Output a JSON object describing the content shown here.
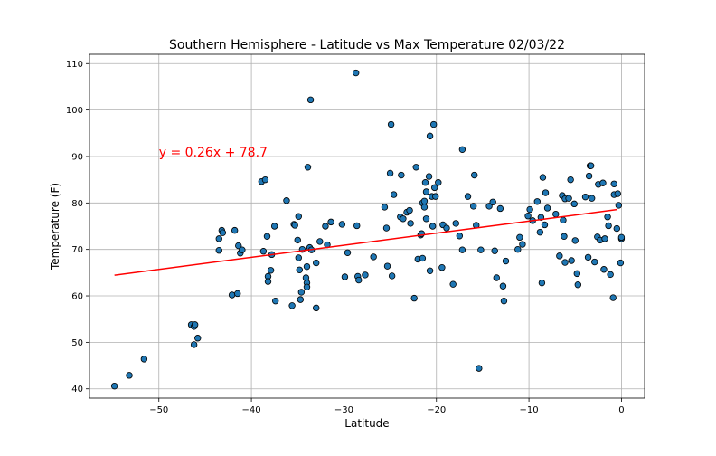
{
  "chart_data": {
    "type": "scatter",
    "title": "Southern Hemisphere - Latitude vs Max Temperature 02/03/22",
    "xlabel": "Latitude",
    "ylabel": "Temperature (F)",
    "xlim": [
      -57.5,
      2.5
    ],
    "ylim": [
      38,
      112
    ],
    "xticks": [
      -50,
      -40,
      -30,
      -20,
      -10,
      0
    ],
    "yticks": [
      40,
      50,
      60,
      70,
      80,
      90,
      100,
      110
    ],
    "grid": true,
    "colors": {
      "points": "#1f77b4",
      "edge": "#000000",
      "line": "#ff0000",
      "grid": "#b0b0b0"
    },
    "regression": {
      "slope": 0.26,
      "intercept": 78.7,
      "x_range": [
        -54.8,
        -0.5
      ],
      "equation": "y = 0.26x + 78.7",
      "label_at": [
        -50,
        90
      ]
    },
    "points": [
      [
        -54.8,
        40.6
      ],
      [
        -53.2,
        42.9
      ],
      [
        -51.6,
        46.4
      ],
      [
        -46.5,
        53.8
      ],
      [
        -46.2,
        53.4
      ],
      [
        -46.1,
        53.8
      ],
      [
        -46.2,
        49.5
      ],
      [
        -45.8,
        50.9
      ],
      [
        -43.5,
        69.8
      ],
      [
        -43.5,
        72.3
      ],
      [
        -43.2,
        74.1
      ],
      [
        -43.1,
        73.6
      ],
      [
        -42.1,
        60.2
      ],
      [
        -41.8,
        74.1
      ],
      [
        -41.5,
        60.5
      ],
      [
        -41.4,
        70.8
      ],
      [
        -41.2,
        69.2
      ],
      [
        -41.0,
        69.9
      ],
      [
        -38.9,
        84.6
      ],
      [
        -38.7,
        69.6
      ],
      [
        -38.5,
        85.0
      ],
      [
        -38.3,
        72.8
      ],
      [
        -38.2,
        64.2
      ],
      [
        -38.2,
        63.1
      ],
      [
        -37.9,
        65.5
      ],
      [
        -37.8,
        68.9
      ],
      [
        -37.5,
        75.0
      ],
      [
        -37.4,
        58.9
      ],
      [
        -36.2,
        80.5
      ],
      [
        -35.6,
        57.9
      ],
      [
        -35.4,
        75.4
      ],
      [
        -35.3,
        75.2
      ],
      [
        -35.0,
        72.0
      ],
      [
        -34.9,
        77.1
      ],
      [
        -34.9,
        68.2
      ],
      [
        -34.8,
        65.6
      ],
      [
        -34.7,
        59.2
      ],
      [
        -34.6,
        60.8
      ],
      [
        -34.5,
        70.0
      ],
      [
        -34.1,
        63.9
      ],
      [
        -34.0,
        62.8
      ],
      [
        -34.0,
        61.9
      ],
      [
        -34.0,
        66.3
      ],
      [
        -33.9,
        87.7
      ],
      [
        -33.7,
        70.4
      ],
      [
        -33.6,
        102.2
      ],
      [
        -33.5,
        69.9
      ],
      [
        -33.0,
        67.1
      ],
      [
        -33.0,
        57.4
      ],
      [
        -32.6,
        71.7
      ],
      [
        -32.0,
        75.0
      ],
      [
        -31.8,
        71.0
      ],
      [
        -31.4,
        75.9
      ],
      [
        -30.2,
        75.4
      ],
      [
        -29.9,
        64.1
      ],
      [
        -29.6,
        69.3
      ],
      [
        -28.7,
        108.0
      ],
      [
        -28.6,
        75.1
      ],
      [
        -28.5,
        64.2
      ],
      [
        -28.4,
        63.4
      ],
      [
        -27.7,
        64.5
      ],
      [
        -26.8,
        68.4
      ],
      [
        -25.6,
        79.1
      ],
      [
        -25.4,
        74.6
      ],
      [
        -25.3,
        66.4
      ],
      [
        -25.0,
        86.4
      ],
      [
        -24.9,
        96.9
      ],
      [
        -24.8,
        64.3
      ],
      [
        -24.6,
        81.8
      ],
      [
        -23.9,
        77.0
      ],
      [
        -23.8,
        86.0
      ],
      [
        -23.6,
        76.6
      ],
      [
        -23.2,
        78.0
      ],
      [
        -22.9,
        78.4
      ],
      [
        -22.8,
        75.6
      ],
      [
        -22.4,
        59.5
      ],
      [
        -22.2,
        87.7
      ],
      [
        -22.0,
        67.9
      ],
      [
        -21.7,
        73.1
      ],
      [
        -21.6,
        73.4
      ],
      [
        -21.5,
        68.1
      ],
      [
        -21.5,
        80.0
      ],
      [
        -21.3,
        80.4
      ],
      [
        -21.3,
        79.1
      ],
      [
        -21.2,
        84.4
      ],
      [
        -21.1,
        82.4
      ],
      [
        -21.1,
        76.6
      ],
      [
        -20.8,
        85.7
      ],
      [
        -20.7,
        94.4
      ],
      [
        -20.7,
        65.4
      ],
      [
        -20.5,
        81.4
      ],
      [
        -20.4,
        75.0
      ],
      [
        -20.3,
        96.9
      ],
      [
        -20.2,
        83.3
      ],
      [
        -20.1,
        81.4
      ],
      [
        -19.8,
        84.4
      ],
      [
        -19.4,
        66.1
      ],
      [
        -19.3,
        75.3
      ],
      [
        -18.9,
        74.6
      ],
      [
        -18.2,
        62.5
      ],
      [
        -17.9,
        75.6
      ],
      [
        -17.5,
        72.9
      ],
      [
        -17.2,
        91.5
      ],
      [
        -17.2,
        69.9
      ],
      [
        -16.6,
        81.4
      ],
      [
        -16.0,
        79.3
      ],
      [
        -15.9,
        86.0
      ],
      [
        -15.7,
        75.2
      ],
      [
        -15.4,
        44.4
      ],
      [
        -15.2,
        69.9
      ],
      [
        -14.3,
        79.3
      ],
      [
        -13.9,
        80.2
      ],
      [
        -13.7,
        69.7
      ],
      [
        -13.5,
        63.9
      ],
      [
        -13.1,
        78.8
      ],
      [
        -12.8,
        62.1
      ],
      [
        -12.7,
        58.9
      ],
      [
        -12.5,
        67.5
      ],
      [
        -11.2,
        70.0
      ],
      [
        -11.0,
        72.6
      ],
      [
        -10.7,
        71.1
      ],
      [
        -10.1,
        77.2
      ],
      [
        -9.9,
        78.6
      ],
      [
        -9.6,
        76.2
      ],
      [
        -9.1,
        80.3
      ],
      [
        -8.8,
        73.7
      ],
      [
        -8.7,
        76.9
      ],
      [
        -8.6,
        62.8
      ],
      [
        -8.5,
        85.5
      ],
      [
        -8.2,
        82.2
      ],
      [
        -8.0,
        78.9
      ],
      [
        -8.3,
        75.3
      ],
      [
        -7.1,
        77.6
      ],
      [
        -6.7,
        68.6
      ],
      [
        -6.4,
        81.6
      ],
      [
        -6.3,
        76.3
      ],
      [
        -6.1,
        80.9
      ],
      [
        -6.2,
        72.8
      ],
      [
        -6.1,
        67.2
      ],
      [
        -5.7,
        81.0
      ],
      [
        -5.5,
        85.0
      ],
      [
        -5.4,
        67.6
      ],
      [
        -5.1,
        79.8
      ],
      [
        -5.0,
        71.9
      ],
      [
        -4.8,
        64.8
      ],
      [
        -4.7,
        62.4
      ],
      [
        -3.9,
        81.3
      ],
      [
        -3.6,
        68.3
      ],
      [
        -3.4,
        88.0
      ],
      [
        -3.5,
        85.8
      ],
      [
        -3.3,
        88.0
      ],
      [
        -3.2,
        81.0
      ],
      [
        -2.9,
        67.3
      ],
      [
        -2.6,
        72.7
      ],
      [
        -2.5,
        84.0
      ],
      [
        -2.3,
        72.0
      ],
      [
        -2.0,
        84.3
      ],
      [
        -1.9,
        65.7
      ],
      [
        -1.8,
        72.3
      ],
      [
        -1.5,
        77.0
      ],
      [
        -1.4,
        75.1
      ],
      [
        -1.2,
        64.6
      ],
      [
        -0.9,
        59.6
      ],
      [
        -0.8,
        84.1
      ],
      [
        -0.8,
        81.8
      ],
      [
        -0.5,
        74.5
      ],
      [
        -0.3,
        79.5
      ],
      [
        -0.4,
        82.0
      ],
      [
        -0.1,
        67.1
      ],
      [
        0.0,
        72.3
      ],
      [
        0.0,
        72.6
      ]
    ]
  }
}
